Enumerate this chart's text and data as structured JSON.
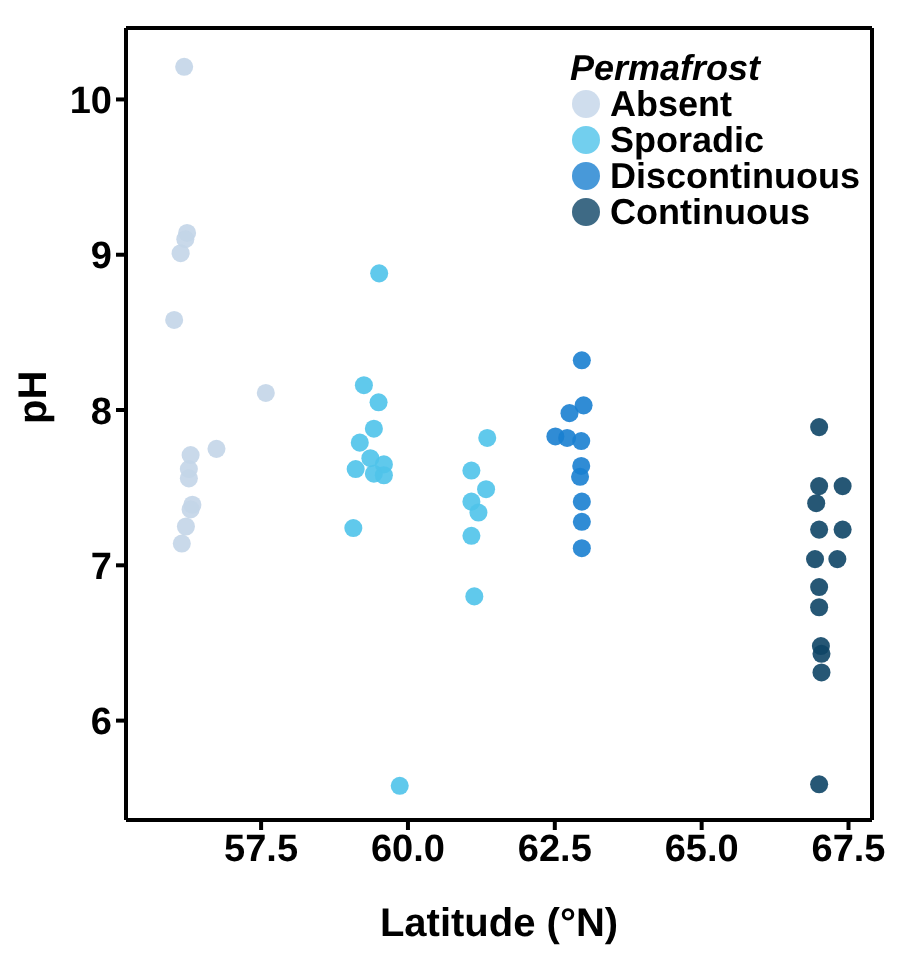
{
  "chart_data": {
    "type": "scatter",
    "xlabel": "Latitude (°N)",
    "ylabel": "pH",
    "legend_title": "Permafrost",
    "legend": "top right",
    "marker": "circle",
    "grid": false,
    "xlim": [
      55.2,
      67.9
    ],
    "xticks": [
      57.5,
      {
        "value": 60,
        "label": "60.0"
      },
      62.5,
      {
        "value": 65,
        "label": "65.0"
      },
      67.5
    ],
    "ylim": [
      5.36,
      10.46
    ],
    "yticks": [
      6,
      7,
      8,
      9,
      10
    ],
    "series": [
      {
        "name": "Absent",
        "color": "#c3d5e8",
        "x": [
          56.19,
          56.24,
          56.21,
          56.13,
          56.02,
          57.58,
          56.74,
          56.3,
          56.27,
          56.27,
          56.33,
          56.3,
          56.22,
          56.15
        ],
        "values": [
          10.21,
          9.14,
          9.1,
          9.01,
          8.58,
          8.11,
          7.75,
          7.71,
          7.62,
          7.56,
          7.39,
          7.36,
          7.25,
          7.14
        ]
      },
      {
        "name": "Sporadic",
        "color": "#4fc3ea",
        "x": [
          59.51,
          59.25,
          59.5,
          59.42,
          59.18,
          59.11,
          59.36,
          59.42,
          59.59,
          59.59,
          59.07,
          59.86,
          61.35,
          61.08,
          61.33,
          61.08,
          61.2,
          61.08,
          61.13
        ],
        "values": [
          8.88,
          8.16,
          8.05,
          7.88,
          7.79,
          7.62,
          7.69,
          7.59,
          7.65,
          7.58,
          7.24,
          5.58,
          7.82,
          7.61,
          7.49,
          7.41,
          7.34,
          7.19,
          6.8
        ]
      },
      {
        "name": "Discontinuous",
        "color": "#1a80d0",
        "x": [
          62.96,
          62.99,
          62.75,
          62.51,
          62.71,
          62.95,
          62.95,
          62.93,
          62.96,
          62.96,
          62.96
        ],
        "values": [
          8.32,
          8.03,
          7.98,
          7.83,
          7.82,
          7.8,
          7.64,
          7.57,
          7.41,
          7.28,
          7.11
        ]
      },
      {
        "name": "Continuous",
        "color": "#0e4566",
        "x": [
          67.0,
          67.0,
          67.4,
          66.95,
          67.0,
          67.4,
          66.93,
          67.31,
          67.0,
          67.0,
          67.03,
          67.04,
          67.04,
          67.0
        ],
        "values": [
          7.89,
          7.51,
          7.51,
          7.4,
          7.23,
          7.23,
          7.04,
          7.04,
          6.86,
          6.73,
          6.48,
          6.43,
          6.31,
          5.59
        ]
      }
    ]
  }
}
